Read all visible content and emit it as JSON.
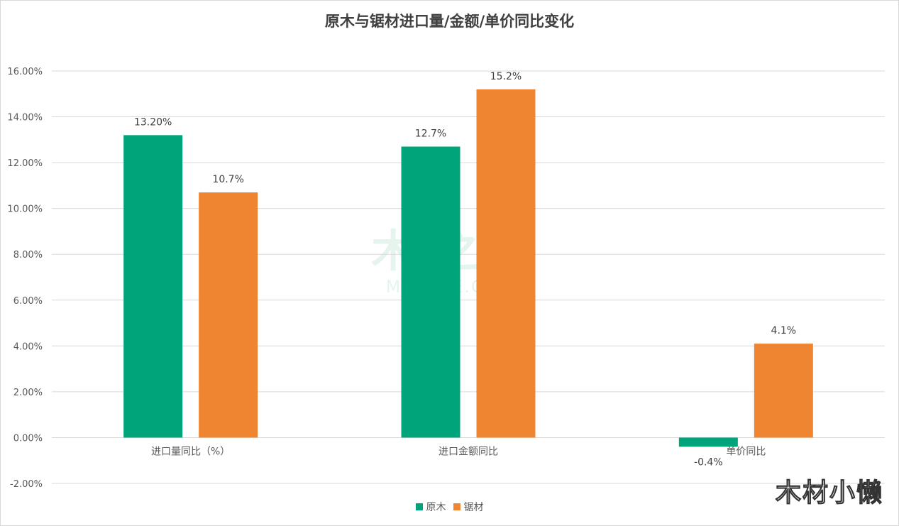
{
  "colors": {
    "background": "#ffffff",
    "grid": "#d9d9d9",
    "series_1": "#00a47a",
    "series_2": "#ef8530"
  },
  "watermark": {
    "main": "木 之家",
    "sub": "MUC ME.COM"
  },
  "corner_mark": "木材小懒",
  "chart_data": {
    "type": "bar",
    "title": "原木与锯材进口量/金额/单价同比变化",
    "xlabel": "",
    "ylabel": "",
    "categories": [
      "进口量同比（%）",
      "进口金额同比",
      "单价同比"
    ],
    "series": [
      {
        "name": "原木",
        "color": "#00a47a",
        "values": [
          13.2,
          12.7,
          -0.4
        ],
        "labels": [
          "13.20%",
          "12.7%",
          "-0.4%"
        ]
      },
      {
        "name": "锯材",
        "color": "#ef8530",
        "values": [
          10.7,
          15.2,
          4.1
        ],
        "labels": [
          "10.7%",
          "15.2%",
          "4.1%"
        ]
      }
    ],
    "ylim": [
      -2,
      16
    ],
    "yticks": [
      -2,
      0,
      2,
      4,
      6,
      8,
      10,
      12,
      14,
      16
    ],
    "ytick_labels": [
      "-2.00%",
      "0.00%",
      "2.00%",
      "4.00%",
      "6.00%",
      "8.00%",
      "10.00%",
      "12.00%",
      "14.00%",
      "16.00%"
    ],
    "grid": true,
    "legend_position": "bottom"
  }
}
